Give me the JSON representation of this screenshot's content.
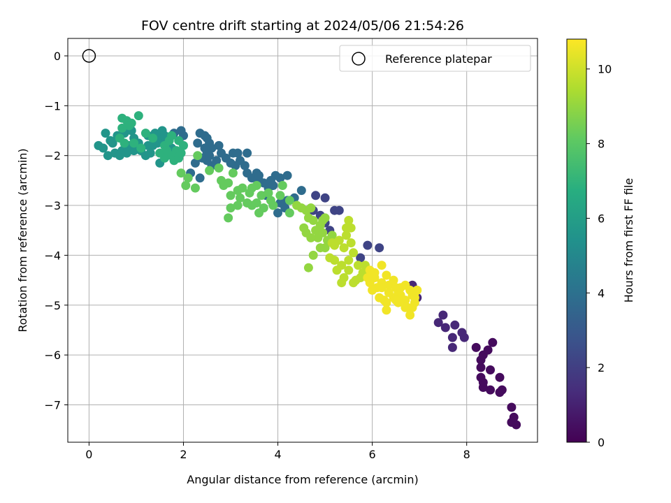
{
  "chart_data": {
    "type": "scatter",
    "title": "FOV centre drift starting at 2024/05/06 21:54:26",
    "xlabel": "Angular distance from reference (arcmin)",
    "ylabel": "Rotation from reference (arcmin)",
    "xlim": [
      -0.45,
      9.5
    ],
    "ylim": [
      -7.75,
      0.35
    ],
    "xticks": [
      0,
      2,
      4,
      6,
      8
    ],
    "yticks": [
      0,
      -1,
      -2,
      -3,
      -4,
      -5,
      -6,
      -7
    ],
    "grid": true,
    "colormap": "viridis",
    "colorbar": {
      "label": "Hours from first FF file",
      "range": [
        0,
        10.8
      ],
      "ticks": [
        0,
        2,
        4,
        6,
        8,
        10
      ]
    },
    "legend": {
      "placement": "top-right",
      "entries": [
        "Reference platepar"
      ]
    },
    "reference_point": {
      "x": 0,
      "y": 0
    },
    "groups": [
      {
        "points": [
          [
            9.05,
            -7.4
          ],
          [
            8.95,
            -7.35
          ],
          [
            9.0,
            -7.25
          ],
          [
            8.95,
            -7.05
          ],
          [
            8.75,
            -6.7
          ],
          [
            8.7,
            -6.75
          ],
          [
            8.7,
            -6.45
          ],
          [
            8.5,
            -6.7
          ],
          [
            8.5,
            -6.3
          ],
          [
            8.35,
            -6.65
          ],
          [
            8.35,
            -6.55
          ],
          [
            8.3,
            -6.45
          ],
          [
            8.3,
            -6.25
          ],
          [
            8.3,
            -6.1
          ],
          [
            8.35,
            -6.0
          ],
          [
            8.2,
            -5.85
          ],
          [
            8.45,
            -5.9
          ],
          [
            8.55,
            -5.75
          ]
        ],
        "hours": 0.3
      },
      {
        "points": [
          [
            7.95,
            -5.65
          ],
          [
            7.9,
            -5.55
          ],
          [
            7.7,
            -5.85
          ],
          [
            7.7,
            -5.65
          ],
          [
            7.75,
            -5.4
          ],
          [
            7.55,
            -5.45
          ],
          [
            7.5,
            -5.2
          ],
          [
            7.4,
            -5.35
          ],
          [
            6.95,
            -4.85
          ],
          [
            6.9,
            -4.75
          ],
          [
            6.85,
            -4.6
          ]
        ],
        "hours": 1.2
      },
      {
        "points": [
          [
            5.9,
            -3.8
          ],
          [
            6.15,
            -3.85
          ],
          [
            5.75,
            -4.05
          ],
          [
            5.2,
            -3.1
          ],
          [
            5.3,
            -3.1
          ],
          [
            5.0,
            -2.85
          ],
          [
            4.8,
            -2.8
          ],
          [
            4.75,
            -3.1
          ],
          [
            4.9,
            -3.2
          ],
          [
            5.0,
            -3.35
          ],
          [
            5.1,
            -3.5
          ]
        ],
        "hours": 2.2
      },
      {
        "points": [
          [
            4.5,
            -2.7
          ],
          [
            4.35,
            -2.85
          ],
          [
            4.2,
            -2.9
          ],
          [
            4.05,
            -2.95
          ],
          [
            4.0,
            -3.15
          ],
          [
            4.15,
            -3.05
          ],
          [
            4.2,
            -2.4
          ],
          [
            4.05,
            -2.45
          ],
          [
            3.95,
            -2.4
          ],
          [
            3.85,
            -2.5
          ],
          [
            3.8,
            -2.65
          ],
          [
            3.7,
            -2.55
          ],
          [
            3.6,
            -2.5
          ],
          [
            3.55,
            -2.35
          ],
          [
            3.45,
            -2.45
          ],
          [
            3.35,
            -2.35
          ],
          [
            3.3,
            -2.2
          ],
          [
            3.2,
            -2.1
          ],
          [
            3.1,
            -2.2
          ],
          [
            3.05,
            -1.95
          ],
          [
            2.9,
            -2.05
          ],
          [
            2.8,
            -1.95
          ],
          [
            2.75,
            -1.8
          ],
          [
            2.7,
            -2.1
          ],
          [
            2.6,
            -2.2
          ],
          [
            2.5,
            -2.1
          ],
          [
            2.4,
            -2.05
          ],
          [
            2.3,
            -1.75
          ],
          [
            2.35,
            -1.55
          ],
          [
            2.25,
            -2.15
          ],
          [
            2.5,
            -1.95
          ],
          [
            2.6,
            -1.85
          ],
          [
            2.55,
            -1.75
          ],
          [
            2.5,
            -1.65
          ],
          [
            2.45,
            -1.6
          ],
          [
            2.45,
            -1.85
          ],
          [
            2.0,
            -1.6
          ],
          [
            1.95,
            -1.5
          ],
          [
            1.8,
            -1.55
          ],
          [
            2.15,
            -2.35
          ],
          [
            2.35,
            -2.45
          ],
          [
            2.55,
            -2.0
          ],
          [
            3.0,
            -2.15
          ],
          [
            3.15,
            -1.95
          ],
          [
            3.35,
            -1.95
          ],
          [
            3.6,
            -2.4
          ],
          [
            3.75,
            -2.8
          ],
          [
            3.9,
            -2.6
          ]
        ],
        "hours": 3.8
      },
      {
        "points": [
          [
            0.9,
            -1.5
          ],
          [
            0.95,
            -1.65
          ],
          [
            0.75,
            -1.55
          ],
          [
            0.6,
            -1.6
          ],
          [
            0.5,
            -1.75
          ],
          [
            0.55,
            -1.95
          ],
          [
            0.7,
            -1.9
          ],
          [
            0.85,
            -1.8
          ],
          [
            0.95,
            -1.9
          ],
          [
            1.05,
            -1.75
          ],
          [
            1.1,
            -1.9
          ],
          [
            1.2,
            -2.0
          ],
          [
            1.3,
            -1.95
          ],
          [
            1.35,
            -1.8
          ],
          [
            1.45,
            -1.75
          ],
          [
            1.5,
            -1.65
          ],
          [
            1.4,
            -1.55
          ],
          [
            1.55,
            -1.5
          ],
          [
            1.6,
            -1.6
          ],
          [
            1.65,
            -1.75
          ],
          [
            1.75,
            -1.85
          ],
          [
            1.25,
            -1.6
          ],
          [
            0.4,
            -2.0
          ],
          [
            0.3,
            -1.85
          ],
          [
            0.2,
            -1.8
          ],
          [
            0.35,
            -1.55
          ],
          [
            0.65,
            -2.0
          ],
          [
            0.8,
            -1.95
          ],
          [
            1.5,
            -2.15
          ],
          [
            1.65,
            -2.0
          ],
          [
            1.25,
            -1.8
          ],
          [
            0.45,
            -1.7
          ]
        ],
        "hours": 5.6
      },
      {
        "points": [
          [
            0.7,
            -1.25
          ],
          [
            0.8,
            -1.3
          ],
          [
            0.9,
            -1.35
          ],
          [
            1.05,
            -1.2
          ],
          [
            0.85,
            -1.4
          ],
          [
            0.7,
            -1.45
          ],
          [
            0.65,
            -1.65
          ],
          [
            0.75,
            -1.75
          ],
          [
            0.95,
            -1.75
          ],
          [
            1.1,
            -1.85
          ],
          [
            1.2,
            -1.55
          ],
          [
            1.35,
            -1.65
          ],
          [
            1.6,
            -1.8
          ],
          [
            1.7,
            -1.7
          ],
          [
            1.75,
            -1.6
          ],
          [
            1.9,
            -1.7
          ],
          [
            1.85,
            -1.9
          ],
          [
            1.75,
            -2.0
          ],
          [
            1.8,
            -2.1
          ],
          [
            1.6,
            -2.05
          ],
          [
            1.5,
            -1.95
          ],
          [
            1.65,
            -1.9
          ],
          [
            1.9,
            -2.05
          ],
          [
            2.0,
            -1.8
          ],
          [
            1.95,
            -1.95
          ]
        ],
        "hours": 6.9
      },
      {
        "points": [
          [
            1.95,
            -2.35
          ],
          [
            2.1,
            -2.45
          ],
          [
            2.05,
            -2.6
          ],
          [
            2.25,
            -2.65
          ],
          [
            2.3,
            -2.0
          ],
          [
            2.55,
            -2.3
          ],
          [
            2.75,
            -2.25
          ],
          [
            2.8,
            -2.5
          ],
          [
            2.85,
            -2.6
          ],
          [
            2.95,
            -2.55
          ],
          [
            3.05,
            -2.35
          ],
          [
            3.0,
            -2.8
          ],
          [
            3.0,
            -3.05
          ],
          [
            3.15,
            -2.7
          ],
          [
            3.25,
            -2.65
          ],
          [
            3.2,
            -2.85
          ],
          [
            3.35,
            -2.95
          ],
          [
            3.45,
            -3.0
          ],
          [
            3.55,
            -2.95
          ],
          [
            3.6,
            -3.15
          ],
          [
            3.65,
            -2.8
          ],
          [
            3.7,
            -3.05
          ],
          [
            3.8,
            -2.75
          ],
          [
            3.85,
            -2.9
          ],
          [
            3.9,
            -3.0
          ],
          [
            4.05,
            -2.8
          ],
          [
            3.55,
            -2.6
          ],
          [
            3.4,
            -2.75
          ],
          [
            2.95,
            -3.25
          ],
          [
            4.1,
            -2.6
          ],
          [
            4.25,
            -3.15
          ],
          [
            4.25,
            -2.9
          ],
          [
            3.15,
            -3.0
          ],
          [
            3.45,
            -2.65
          ]
        ],
        "hours": 8.2
      },
      {
        "points": [
          [
            4.6,
            -3.1
          ],
          [
            4.5,
            -3.05
          ],
          [
            4.65,
            -3.25
          ],
          [
            4.75,
            -3.3
          ],
          [
            4.8,
            -3.5
          ],
          [
            4.85,
            -3.65
          ],
          [
            4.95,
            -3.55
          ],
          [
            5.05,
            -3.7
          ],
          [
            5.0,
            -3.85
          ],
          [
            4.9,
            -3.85
          ],
          [
            4.6,
            -3.55
          ],
          [
            4.55,
            -3.45
          ],
          [
            4.7,
            -3.65
          ],
          [
            4.75,
            -4.0
          ],
          [
            4.65,
            -4.25
          ],
          [
            4.9,
            -3.4
          ],
          [
            5.0,
            -3.25
          ],
          [
            4.4,
            -3.0
          ],
          [
            4.7,
            -3.05
          ],
          [
            5.15,
            -3.6
          ],
          [
            4.95,
            -3.3
          ]
        ],
        "hours": 9.0
      },
      {
        "points": [
          [
            5.2,
            -3.8
          ],
          [
            5.3,
            -3.7
          ],
          [
            5.4,
            -3.85
          ],
          [
            5.45,
            -3.6
          ],
          [
            5.55,
            -3.75
          ],
          [
            5.6,
            -3.95
          ],
          [
            5.5,
            -4.1
          ],
          [
            5.35,
            -4.2
          ],
          [
            5.2,
            -4.1
          ],
          [
            5.1,
            -4.05
          ],
          [
            5.25,
            -4.3
          ],
          [
            5.4,
            -4.45
          ],
          [
            5.5,
            -4.3
          ],
          [
            5.65,
            -4.5
          ],
          [
            5.35,
            -4.55
          ],
          [
            5.7,
            -4.2
          ],
          [
            5.8,
            -4.35
          ],
          [
            5.85,
            -4.2
          ],
          [
            5.55,
            -3.45
          ],
          [
            5.45,
            -3.45
          ],
          [
            5.5,
            -3.3
          ],
          [
            5.15,
            -3.75
          ],
          [
            5.6,
            -4.55
          ],
          [
            5.75,
            -4.45
          ]
        ],
        "hours": 9.7
      },
      {
        "points": [
          [
            5.95,
            -4.3
          ],
          [
            6.05,
            -4.45
          ],
          [
            5.95,
            -4.55
          ],
          [
            6.1,
            -4.65
          ],
          [
            6.2,
            -4.55
          ],
          [
            6.3,
            -4.4
          ],
          [
            6.35,
            -4.6
          ],
          [
            6.45,
            -4.5
          ],
          [
            6.5,
            -4.65
          ],
          [
            6.55,
            -4.75
          ],
          [
            6.6,
            -4.65
          ],
          [
            6.7,
            -4.6
          ],
          [
            6.8,
            -4.7
          ],
          [
            6.85,
            -4.8
          ],
          [
            6.9,
            -4.95
          ],
          [
            6.85,
            -5.05
          ],
          [
            6.75,
            -5.05
          ],
          [
            6.7,
            -4.9
          ],
          [
            6.55,
            -4.95
          ],
          [
            6.45,
            -4.85
          ],
          [
            6.35,
            -4.75
          ],
          [
            6.25,
            -4.9
          ],
          [
            6.3,
            -5.1
          ],
          [
            6.2,
            -4.65
          ],
          [
            6.05,
            -4.35
          ],
          [
            5.9,
            -4.45
          ],
          [
            6.0,
            -4.7
          ],
          [
            6.6,
            -4.8
          ],
          [
            6.7,
            -5.05
          ],
          [
            6.8,
            -5.2
          ],
          [
            6.95,
            -4.7
          ],
          [
            6.2,
            -4.2
          ],
          [
            6.15,
            -4.85
          ],
          [
            6.5,
            -4.9
          ],
          [
            6.3,
            -4.95
          ],
          [
            6.9,
            -4.75
          ],
          [
            6.9,
            -4.85
          ]
        ],
        "hours": 10.6
      }
    ]
  }
}
